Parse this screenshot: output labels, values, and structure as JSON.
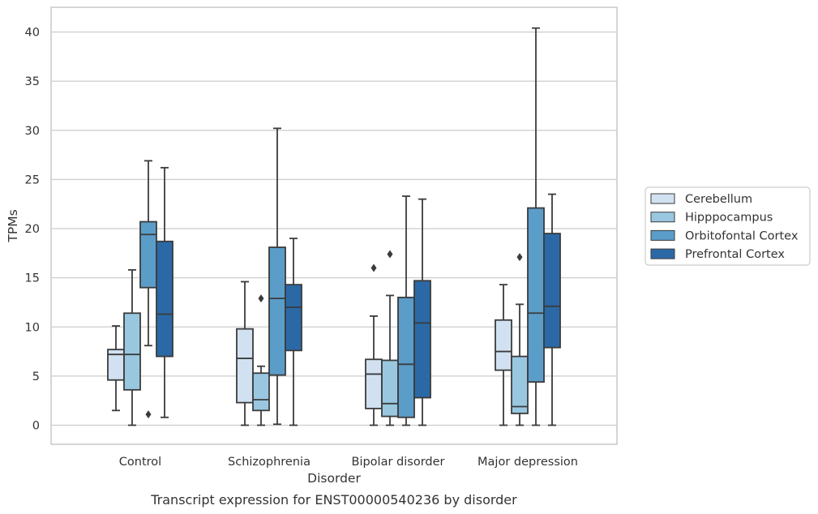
{
  "caption": "Transcript expression for ENST00000540236 by disorder",
  "chart_data": {
    "type": "boxplot",
    "xlabel": "Disorder",
    "ylabel": "TPMs",
    "ylim": [
      -2,
      42.5
    ],
    "yticks": [
      0,
      5,
      10,
      15,
      20,
      25,
      30,
      35,
      40
    ],
    "grid": true,
    "legend_position": "right",
    "categories": [
      "Control",
      "Schizophrenia",
      "Bipolar disorder",
      "Major depression"
    ],
    "series": [
      {
        "name": "Cerebellum",
        "color": "#d1e1f1",
        "boxes": [
          {
            "whisker_low": 1.5,
            "q1": 4.6,
            "median": 7.2,
            "q3": 7.7,
            "whisker_high": 10.1,
            "outliers": []
          },
          {
            "whisker_low": 0.0,
            "q1": 2.3,
            "median": 6.8,
            "q3": 9.8,
            "whisker_high": 14.6,
            "outliers": []
          },
          {
            "whisker_low": 0.0,
            "q1": 1.7,
            "median": 5.2,
            "q3": 6.7,
            "whisker_high": 11.1,
            "outliers": [
              16.0
            ]
          },
          {
            "whisker_low": 0.0,
            "q1": 5.6,
            "median": 7.5,
            "q3": 10.7,
            "whisker_high": 14.3,
            "outliers": []
          }
        ]
      },
      {
        "name": "Hipppocampus",
        "color": "#9ac7e0",
        "boxes": [
          {
            "whisker_low": 0.0,
            "q1": 3.6,
            "median": 7.2,
            "q3": 11.4,
            "whisker_high": 15.8,
            "outliers": []
          },
          {
            "whisker_low": 0.0,
            "q1": 1.5,
            "median": 2.6,
            "q3": 5.3,
            "whisker_high": 6.0,
            "outliers": [
              12.9
            ]
          },
          {
            "whisker_low": 0.0,
            "q1": 0.9,
            "median": 2.2,
            "q3": 6.6,
            "whisker_high": 13.2,
            "outliers": [
              17.4
            ]
          },
          {
            "whisker_low": 0.0,
            "q1": 1.2,
            "median": 1.9,
            "q3": 7.0,
            "whisker_high": 12.3,
            "outliers": [
              17.1
            ]
          }
        ]
      },
      {
        "name": "Orbitofontal Cortex",
        "color": "#5b9dc9",
        "boxes": [
          {
            "whisker_low": 8.1,
            "q1": 14.0,
            "median": 19.4,
            "q3": 20.7,
            "whisker_high": 26.9,
            "outliers": [
              1.1
            ]
          },
          {
            "whisker_low": 0.1,
            "q1": 5.1,
            "median": 12.9,
            "q3": 18.1,
            "whisker_high": 30.2,
            "outliers": []
          },
          {
            "whisker_low": 0.0,
            "q1": 0.8,
            "median": 6.2,
            "q3": 13.0,
            "whisker_high": 23.3,
            "outliers": []
          },
          {
            "whisker_low": 0.0,
            "q1": 4.4,
            "median": 11.4,
            "q3": 22.1,
            "whisker_high": 40.4,
            "outliers": []
          }
        ]
      },
      {
        "name": "Prefrontal Cortex",
        "color": "#2b69a6",
        "boxes": [
          {
            "whisker_low": 0.8,
            "q1": 7.0,
            "median": 11.3,
            "q3": 18.7,
            "whisker_high": 26.2,
            "outliers": []
          },
          {
            "whisker_low": 0.0,
            "q1": 7.6,
            "median": 12.0,
            "q3": 14.3,
            "whisker_high": 19.0,
            "outliers": []
          },
          {
            "whisker_low": 0.0,
            "q1": 2.8,
            "median": 10.4,
            "q3": 14.7,
            "whisker_high": 23.0,
            "outliers": []
          },
          {
            "whisker_low": 0.0,
            "q1": 7.9,
            "median": 12.1,
            "q3": 19.5,
            "whisker_high": 23.5,
            "outliers": []
          }
        ]
      }
    ]
  }
}
